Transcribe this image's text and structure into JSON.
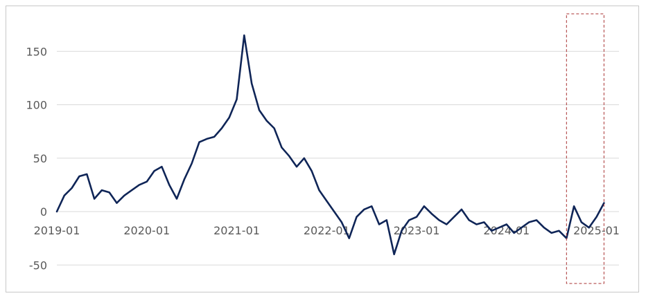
{
  "chart_data": {
    "type": "line",
    "title": "",
    "xlabel": "",
    "ylabel": "",
    "ylim": [
      -50,
      175
    ],
    "y_ticks": [
      "-50",
      "0",
      "50",
      "100",
      "150"
    ],
    "x_ticks": [
      "2019-01",
      "2020-01",
      "2021-01",
      "2022-01",
      "2023-01",
      "2024-01",
      "2025-01"
    ],
    "grid": "horizontal",
    "legend": "none",
    "colors": {
      "series": "#0f2557",
      "grid": "#d9d9d9",
      "highlight_box": "#a83232"
    },
    "highlight": {
      "x_start": "2024-09",
      "x_end": "2025-02"
    },
    "series": [
      {
        "x": [
          "2019-01",
          "2019-02",
          "2019-03",
          "2019-04",
          "2019-05",
          "2019-06",
          "2019-07",
          "2019-08",
          "2019-09",
          "2019-10",
          "2019-11",
          "2019-12",
          "2020-01",
          "2020-02",
          "2020-03",
          "2020-04",
          "2020-05",
          "2020-06",
          "2020-07",
          "2020-08",
          "2020-09",
          "2020-10",
          "2020-11",
          "2020-12",
          "2021-01",
          "2021-02",
          "2021-03",
          "2021-04",
          "2021-05",
          "2021-06",
          "2021-07",
          "2021-08",
          "2021-09",
          "2021-10",
          "2021-11",
          "2021-12",
          "2022-01",
          "2022-02",
          "2022-03",
          "2022-04",
          "2022-05",
          "2022-06",
          "2022-07",
          "2022-08",
          "2022-09",
          "2022-10",
          "2022-11",
          "2022-12",
          "2023-01",
          "2023-02",
          "2023-03",
          "2023-04",
          "2023-05",
          "2023-06",
          "2023-07",
          "2023-08",
          "2023-09",
          "2023-10",
          "2023-11",
          "2023-12",
          "2024-01",
          "2024-02",
          "2024-03",
          "2024-04",
          "2024-05",
          "2024-06",
          "2024-07",
          "2024-08",
          "2024-09",
          "2024-10",
          "2024-11",
          "2024-12",
          "2025-01",
          "2025-02"
        ],
        "values": [
          0,
          15,
          22,
          33,
          35,
          12,
          20,
          18,
          8,
          15,
          20,
          25,
          28,
          38,
          42,
          25,
          12,
          30,
          45,
          65,
          68,
          70,
          78,
          88,
          105,
          165,
          120,
          95,
          85,
          78,
          60,
          52,
          42,
          50,
          38,
          20,
          10,
          0,
          -10,
          -25,
          -5,
          2,
          5,
          -12,
          -8,
          -40,
          -18,
          -8,
          -5,
          5,
          -2,
          -8,
          -12,
          -5,
          2,
          -8,
          -12,
          -10,
          -18,
          -15,
          -12,
          -20,
          -15,
          -10,
          -8,
          -15,
          -20,
          -18,
          -25,
          5,
          -10,
          -15,
          -5,
          8
        ]
      }
    ]
  }
}
